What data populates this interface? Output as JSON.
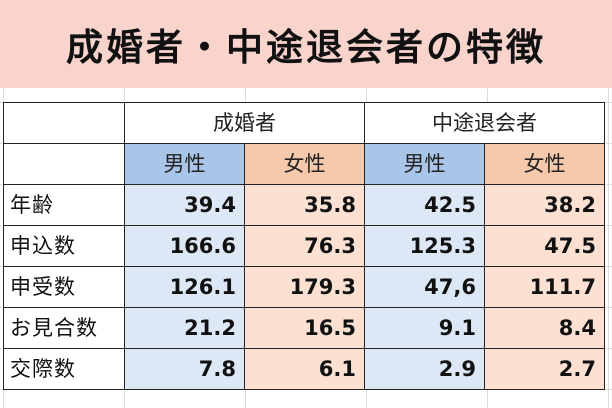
{
  "title": "成婚者・中途退会者の特徴",
  "table": {
    "groups": [
      "成婚者",
      "中途退会者"
    ],
    "subheaders": [
      "男性",
      "女性",
      "男性",
      "女性"
    ],
    "rows": [
      {
        "label": "年齢",
        "values": [
          "39.4",
          "35.8",
          "42.5",
          "38.2"
        ]
      },
      {
        "label": "申込数",
        "values": [
          "166.6",
          "76.3",
          "125.3",
          "47.5"
        ]
      },
      {
        "label": "申受数",
        "values": [
          "126.1",
          "179.3",
          "47,6",
          "111.7"
        ]
      },
      {
        "label": "お見合数",
        "values": [
          "21.2",
          "16.5",
          "9.1",
          "8.4"
        ]
      },
      {
        "label": "交際数",
        "values": [
          "7.8",
          "6.1",
          "2.9",
          "2.7"
        ]
      }
    ]
  },
  "colors": {
    "banner": "#f9d4cd",
    "male_header": "#a9c6e8",
    "female_header": "#f6c8ac",
    "male_cell": "#dce8f6",
    "female_cell": "#fce1d3"
  }
}
